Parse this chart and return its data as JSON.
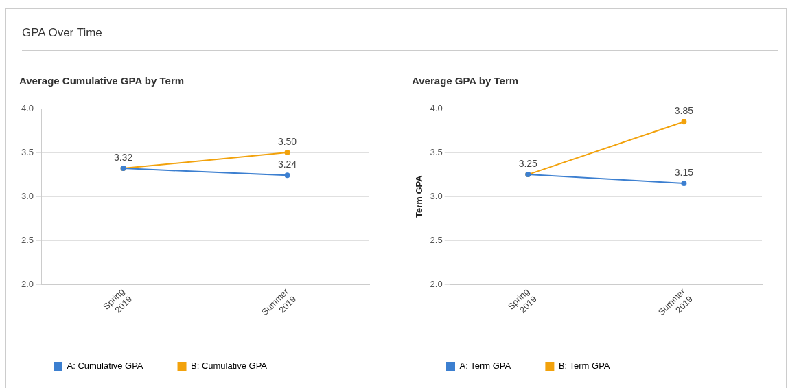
{
  "chart_data": [
    {
      "type": "line",
      "title": "Average Cumulative GPA by Term",
      "annotations": [
        "GPA Over Time"
      ],
      "categories": [
        "Spring 2019",
        "Summer 2019"
      ],
      "series": [
        {
          "name": "A: Cumulative GPA",
          "color": "#3c7fd0",
          "values": [
            3.32,
            3.24
          ],
          "value_labels": [
            null,
            "3.24"
          ]
        },
        {
          "name": "B: Cumulative GPA",
          "color": "#f2a20c",
          "values": [
            3.32,
            3.5
          ],
          "value_labels": [
            "3.32",
            "3.50"
          ]
        }
      ],
      "ylim": [
        2,
        4
      ],
      "yticks": [
        {
          "value": 2,
          "label": "2.0"
        },
        {
          "value": 2.5,
          "label": "2.5"
        },
        {
          "value": 3,
          "label": "3.0"
        },
        {
          "value": 3.5,
          "label": "3.5"
        },
        {
          "value": 4,
          "label": "4.0"
        }
      ],
      "grid": "y",
      "legend": "bottom",
      "marker": "circle",
      "line_style": "solid"
    },
    {
      "type": "line",
      "title": "Average GPA by Term",
      "ylabel": "Term GPA",
      "categories": [
        "Spring 2019",
        "Summer 2019"
      ],
      "series": [
        {
          "name": "A: Term GPA",
          "color": "#3c7fd0",
          "values": [
            3.25,
            3.15
          ],
          "value_labels": [
            null,
            "3.15"
          ]
        },
        {
          "name": "B: Term GPA",
          "color": "#f2a20c",
          "values": [
            3.25,
            3.85
          ],
          "value_labels": [
            "3.25",
            "3.85"
          ]
        }
      ],
      "ylim": [
        2,
        4
      ],
      "yticks": [
        {
          "value": 2,
          "label": "2.0"
        },
        {
          "value": 2.5,
          "label": "2.5"
        },
        {
          "value": 3,
          "label": "3.0"
        },
        {
          "value": 3.5,
          "label": "3.5"
        },
        {
          "value": 4,
          "label": "4.0"
        }
      ],
      "grid": "y",
      "legend": "bottom",
      "marker": "circle",
      "line_style": "solid"
    }
  ]
}
